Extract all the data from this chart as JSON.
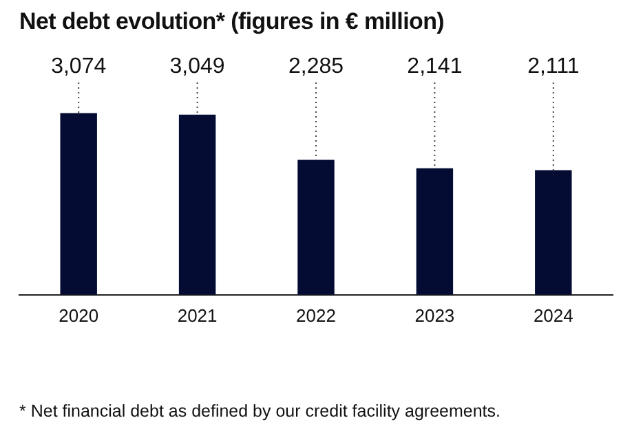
{
  "chart_data": {
    "type": "bar",
    "title": "Net debt evolution* (figures in € million)",
    "categories": [
      "2020",
      "2021",
      "2022",
      "2023",
      "2024"
    ],
    "values": [
      3074,
      3049,
      2285,
      2141,
      2111
    ],
    "color": "#050c33",
    "value_labels": [
      "3,074",
      "3,049",
      "2,285",
      "2,141",
      "2,111"
    ],
    "grid": false,
    "legend": false,
    "tick_labels": "x",
    "annotations": [
      "* Net financial debt as defined by our credit facility agreements."
    ]
  }
}
